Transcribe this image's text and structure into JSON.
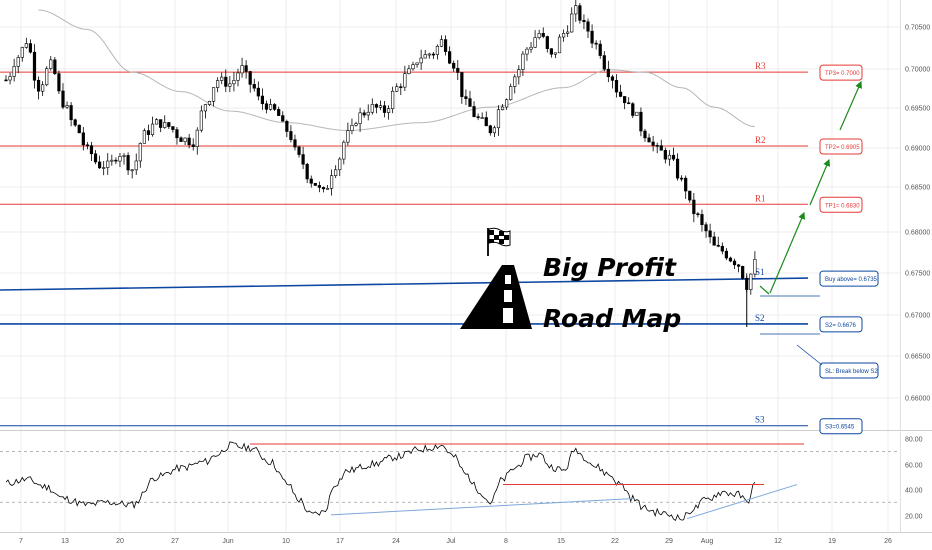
{
  "colors": {
    "bull": "#000000",
    "bear": "#000000",
    "sma": "#b7b7b7",
    "resistance": "#e53935",
    "support": "#0d47a1",
    "arrow": "#1b8a1b",
    "rsi": "#000000",
    "rsi_resistance": "#e53935",
    "rsi_support": "#7da7d9",
    "grid": "#ececec",
    "dashed": "#9e9e9e"
  },
  "brand": {
    "line1": "Big Profit",
    "line2": "Road Map",
    "icon": "road-icon",
    "flag_icon": "checkered-flag-icon"
  },
  "levels": [
    {
      "label": "R3",
      "box": "TP3= 0.7000",
      "value": 0.7,
      "kind": "resistance"
    },
    {
      "label": "R2",
      "box": "TP2= 0.6905",
      "value": 0.6905,
      "kind": "resistance"
    },
    {
      "label": "R1",
      "box": "TP1= 0.6830",
      "value": 0.683,
      "kind": "resistance"
    },
    {
      "label": "S1",
      "box": "Buy above= 0.6735",
      "value": 0.6735,
      "kind": "support"
    },
    {
      "label": "S2",
      "box": "S2= 0.6676",
      "value": 0.6676,
      "kind": "support"
    },
    {
      "label": "",
      "box": "SL: Break below S2",
      "value": null,
      "kind": "support"
    },
    {
      "label": "S3",
      "box": "S3=0.6545",
      "value": 0.6545,
      "kind": "support"
    }
  ],
  "chart_data": {
    "type": "candlestick",
    "x_ticks": [
      "7",
      "13",
      "20",
      "27",
      "Jun",
      "10",
      "17",
      "24",
      "Jul",
      "8",
      "15",
      "22",
      "29",
      "Aug",
      "12",
      "19",
      "26"
    ],
    "price_ticks": [
      "0.70500",
      "0.70000",
      "0.69500",
      "0.69000",
      "0.68500",
      "0.68000",
      "0.67500",
      "0.67000",
      "0.66500",
      "0.66000"
    ],
    "price_range": [
      0.6545,
      0.708
    ],
    "rsi_ticks": [
      "80.00",
      "60.00",
      "40.00",
      "20.00"
    ],
    "rsi_range": [
      10,
      85
    ],
    "price_anchors": [
      [
        0,
        0.699
      ],
      [
        3,
        0.702
      ],
      [
        5,
        0.704
      ],
      [
        8,
        0.698
      ],
      [
        11,
        0.701
      ],
      [
        14,
        0.696
      ],
      [
        17,
        0.693
      ],
      [
        20,
        0.69
      ],
      [
        23,
        0.688
      ],
      [
        25,
        0.688
      ],
      [
        28,
        0.6895
      ],
      [
        31,
        0.6875
      ],
      [
        34,
        0.692
      ],
      [
        37,
        0.6935
      ],
      [
        40,
        0.693
      ],
      [
        43,
        0.6915
      ],
      [
        46,
        0.691
      ],
      [
        49,
        0.696
      ],
      [
        52,
        0.699
      ],
      [
        55,
        0.6985
      ],
      [
        58,
        0.7005
      ],
      [
        60,
        0.6985
      ],
      [
        63,
        0.696
      ],
      [
        66,
        0.695
      ],
      [
        69,
        0.6925
      ],
      [
        72,
        0.689
      ],
      [
        75,
        0.686
      ],
      [
        78,
        0.6845
      ],
      [
        81,
        0.688
      ],
      [
        84,
        0.692
      ],
      [
        87,
        0.6945
      ],
      [
        90,
        0.6955
      ],
      [
        93,
        0.695
      ],
      [
        96,
        0.698
      ],
      [
        99,
        0.7
      ],
      [
        102,
        0.702
      ],
      [
        105,
        0.7025
      ],
      [
        107,
        0.704
      ],
      [
        110,
        0.701
      ],
      [
        113,
        0.696
      ],
      [
        116,
        0.694
      ],
      [
        119,
        0.6925
      ],
      [
        122,
        0.696
      ],
      [
        125,
        0.6995
      ],
      [
        128,
        0.703
      ],
      [
        131,
        0.705
      ],
      [
        134,
        0.702
      ],
      [
        137,
        0.705
      ],
      [
        140,
        0.708
      ],
      [
        142,
        0.706
      ],
      [
        145,
        0.7035
      ],
      [
        148,
        0.7
      ],
      [
        151,
        0.697
      ],
      [
        154,
        0.695
      ],
      [
        157,
        0.692
      ],
      [
        160,
        0.69
      ],
      [
        163,
        0.689
      ],
      [
        166,
        0.686
      ],
      [
        169,
        0.682
      ],
      [
        172,
        0.6795
      ],
      [
        174,
        0.6775
      ],
      [
        176,
        0.677
      ],
      [
        178,
        0.676
      ],
      [
        180,
        0.6752
      ],
      [
        182,
        0.6725
      ],
      [
        184,
        0.6755
      ]
    ],
    "sma_anchors": [
      [
        8,
        0.708
      ],
      [
        20,
        0.7055
      ],
      [
        31,
        0.7
      ],
      [
        43,
        0.6975
      ],
      [
        55,
        0.695
      ],
      [
        69,
        0.6935
      ],
      [
        84,
        0.6925
      ],
      [
        102,
        0.6935
      ],
      [
        119,
        0.6955
      ],
      [
        137,
        0.698
      ],
      [
        148,
        0.7003
      ],
      [
        157,
        0.7
      ],
      [
        166,
        0.698
      ],
      [
        174,
        0.6955
      ],
      [
        184,
        0.693
      ]
    ],
    "rsi_anchors": [
      [
        0,
        45
      ],
      [
        5,
        48
      ],
      [
        10,
        42
      ],
      [
        14,
        33
      ],
      [
        20,
        28
      ],
      [
        25,
        30
      ],
      [
        31,
        28
      ],
      [
        37,
        50
      ],
      [
        43,
        57
      ],
      [
        49,
        62
      ],
      [
        52,
        68
      ],
      [
        55,
        75
      ],
      [
        60,
        73
      ],
      [
        65,
        62
      ],
      [
        69,
        45
      ],
      [
        72,
        32
      ],
      [
        75,
        20
      ],
      [
        78,
        22
      ],
      [
        81,
        45
      ],
      [
        84,
        55
      ],
      [
        90,
        60
      ],
      [
        96,
        66
      ],
      [
        102,
        72
      ],
      [
        107,
        75
      ],
      [
        110,
        66
      ],
      [
        113,
        52
      ],
      [
        116,
        40
      ],
      [
        119,
        30
      ],
      [
        122,
        48
      ],
      [
        125,
        57
      ],
      [
        128,
        65
      ],
      [
        131,
        68
      ],
      [
        134,
        58
      ],
      [
        137,
        55
      ],
      [
        140,
        72
      ],
      [
        142,
        66
      ],
      [
        145,
        58
      ],
      [
        148,
        52
      ],
      [
        151,
        44
      ],
      [
        154,
        33
      ],
      [
        157,
        25
      ],
      [
        160,
        22
      ],
      [
        163,
        20
      ],
      [
        166,
        17
      ],
      [
        169,
        25
      ],
      [
        172,
        32
      ],
      [
        176,
        38
      ],
      [
        180,
        36
      ],
      [
        182,
        30
      ],
      [
        184,
        44
      ]
    ]
  }
}
